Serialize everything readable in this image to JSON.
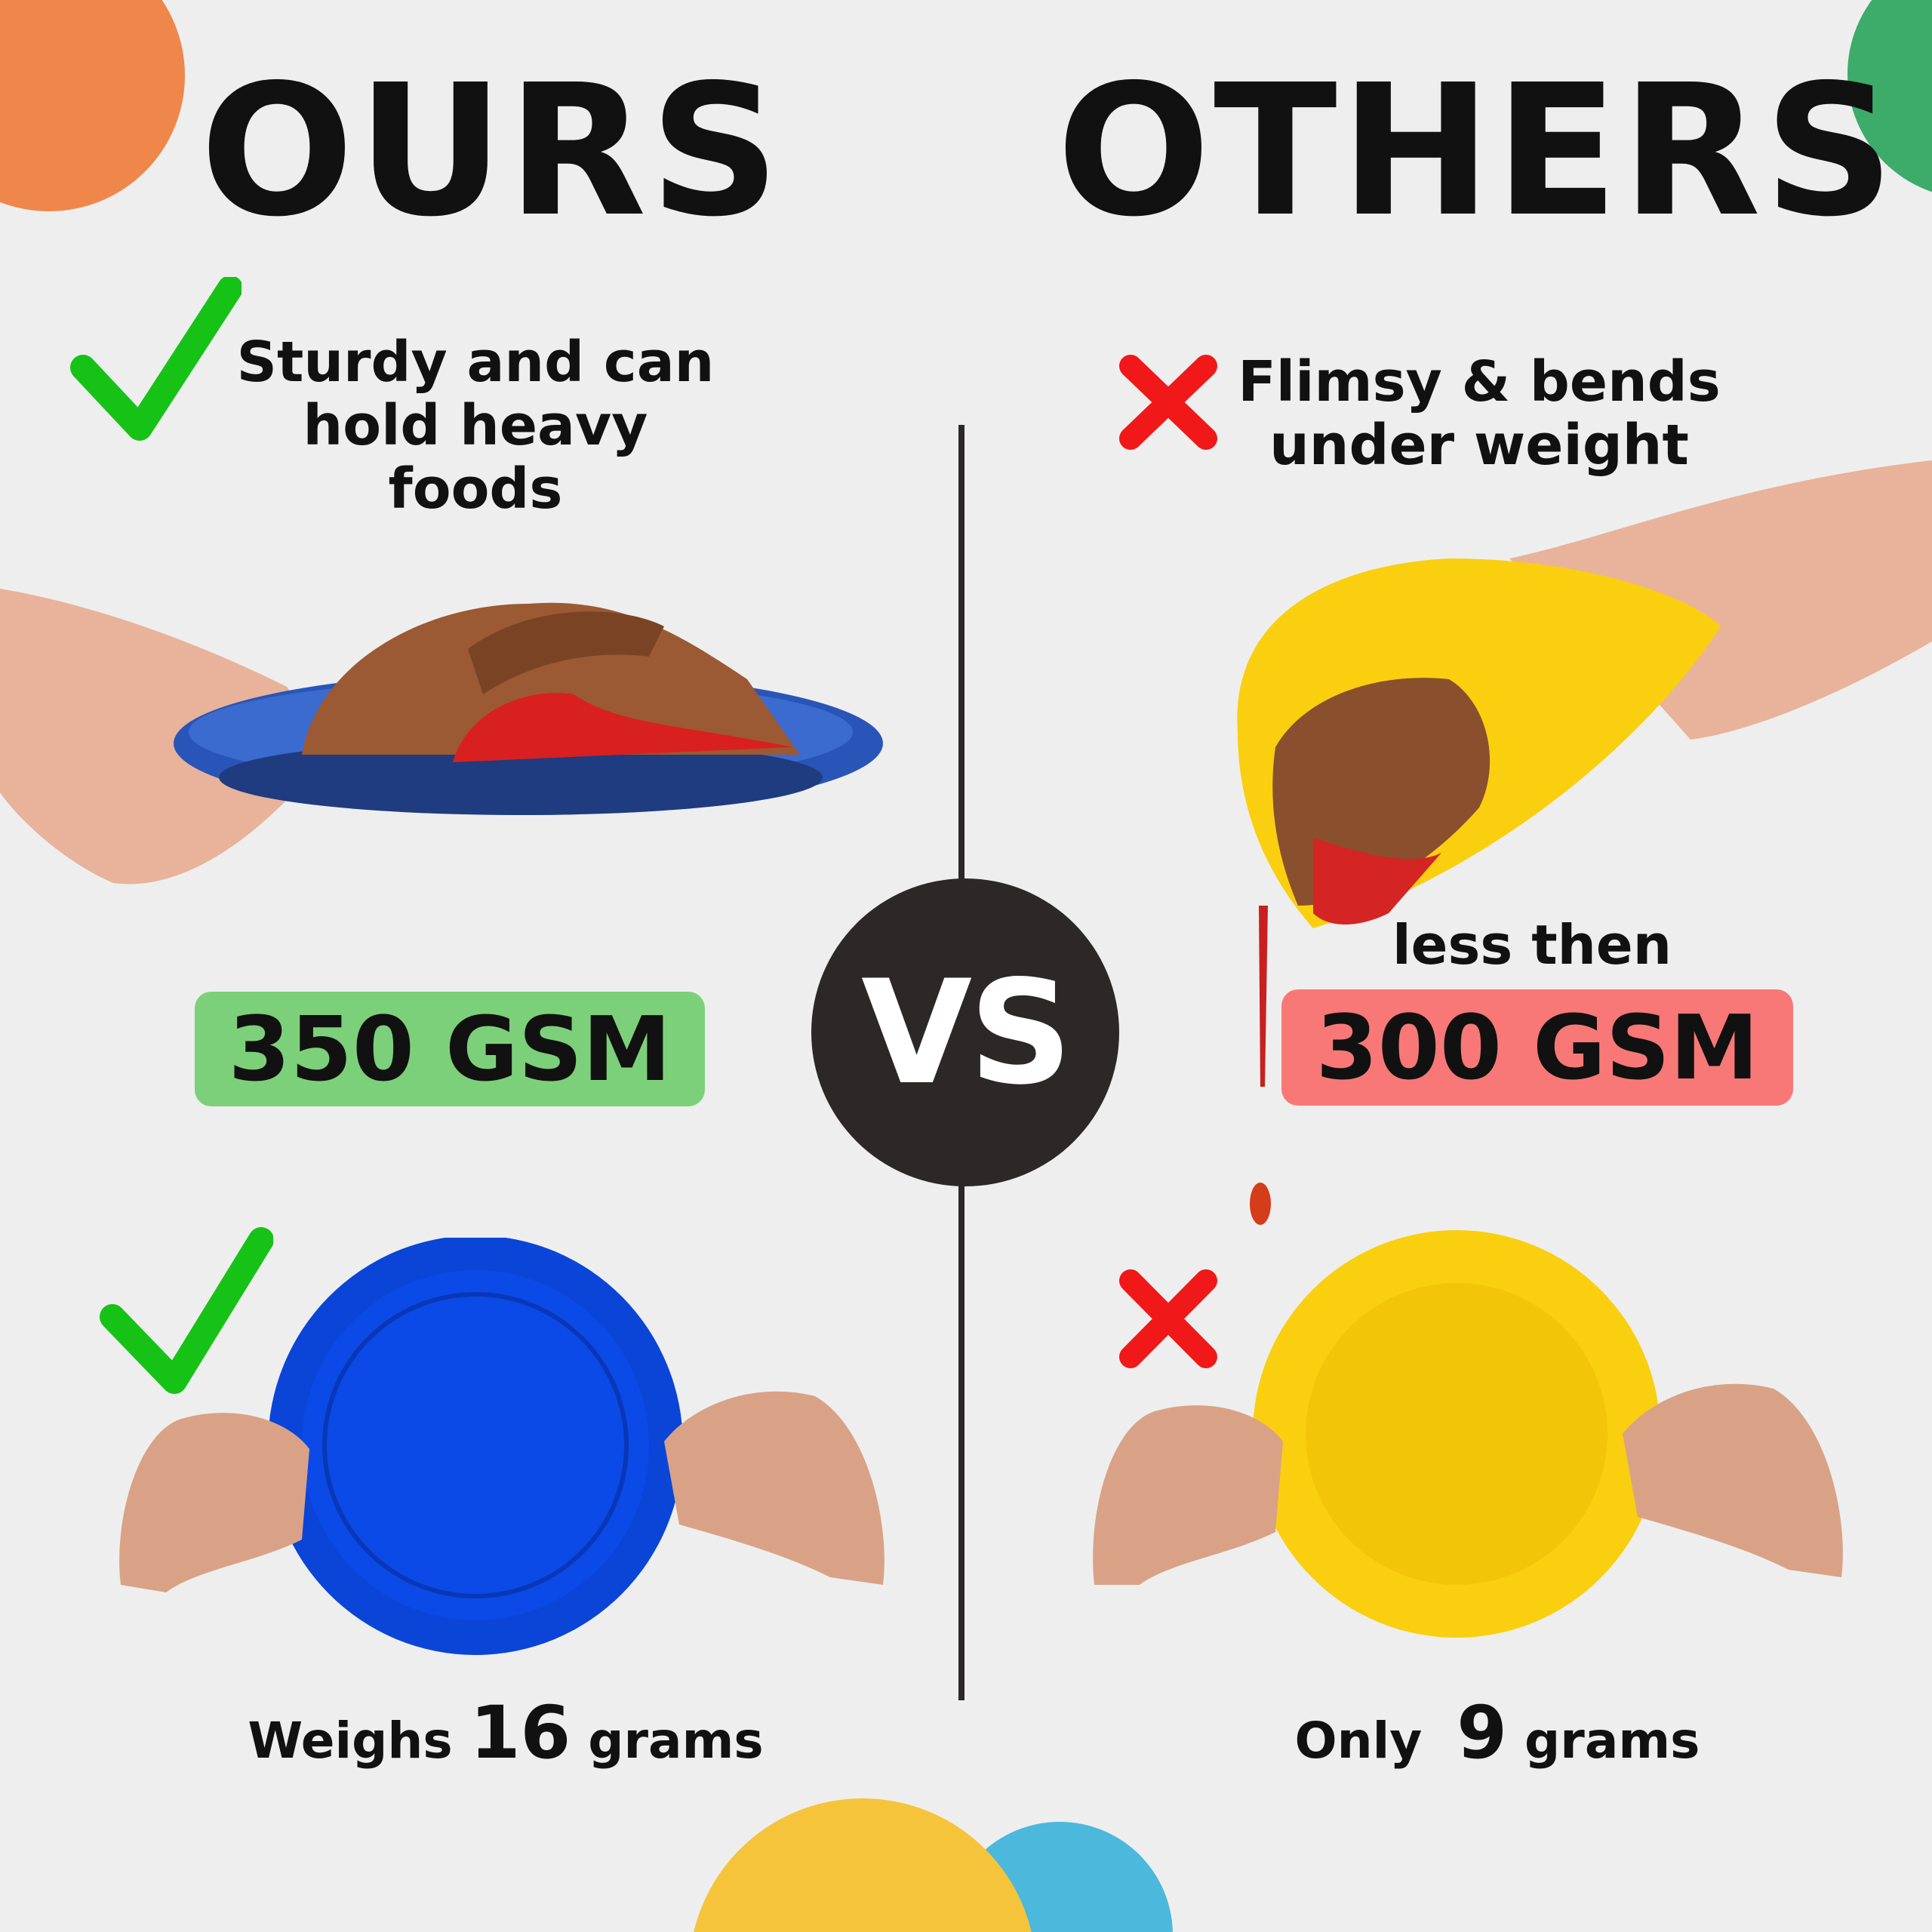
{
  "colors": {
    "background": "#eeeeee",
    "orange": "#f0874a",
    "green_blob": "#3dab6a",
    "check": "#17c217",
    "cross": "#f01818",
    "ours_badge": "#7dd07a",
    "others_badge": "#f87878",
    "vs_circle": "#2d2828",
    "yellow": "#f5c43a",
    "blue": "#4bb8dc",
    "our_plate": "#0a45d8",
    "their_plate": "#f9cf10"
  },
  "ours": {
    "title": "OURS",
    "claim_line1": "Sturdy and can",
    "claim_line2": "hold heavy foods",
    "gsm": "350 GSM",
    "weight_prefix": "Weighs",
    "weight_value": "16",
    "weight_suffix": "grams",
    "icon": "check-icon"
  },
  "others": {
    "title": "OTHERS",
    "claim_line1": "Flimsy & bends",
    "claim_line2": "under weight",
    "gsm_prefix": "less then",
    "gsm": "300 GSM",
    "weight_prefix": "Only",
    "weight_value": "9",
    "weight_suffix": "grams",
    "icon": "cross-icon"
  },
  "vs": "VS"
}
